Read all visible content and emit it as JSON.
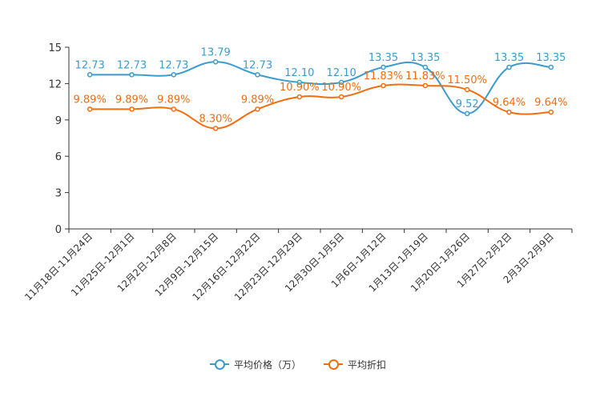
{
  "chart_data": {
    "type": "line",
    "title": "",
    "xlabel": "",
    "ylabel": "",
    "ylim": [
      0,
      15
    ],
    "yticks": [
      0,
      3,
      6,
      9,
      12,
      15
    ],
    "grid": false,
    "legend_position": "bottom-center",
    "categories": [
      "11月18日-11月24日",
      "11月25日-12月1日",
      "12月2日-12月8日",
      "12月9日-12月15日",
      "12月16日-12月22日",
      "12月23日-12月29日",
      "12月30日-1月5日",
      "1月6日-1月12日",
      "1月13日-1月19日",
      "1月20日-1月26日",
      "1月27日-2月2日",
      "2月3日-2月9日"
    ],
    "series": [
      {
        "name": "平均价格（万）",
        "color": "#3a9bcf",
        "values": [
          12.73,
          12.73,
          12.73,
          13.79,
          12.73,
          12.1,
          12.1,
          13.35,
          13.35,
          9.52,
          13.35,
          13.35
        ],
        "labels": [
          "12.73",
          "12.73",
          "12.73",
          "13.79",
          "12.73",
          "12.10",
          "12.10",
          "13.35",
          "13.35",
          "9.52",
          "13.35",
          "13.35"
        ]
      },
      {
        "name": "平均折扣",
        "color": "#f26d0f",
        "values": [
          9.89,
          9.89,
          9.89,
          8.3,
          9.89,
          10.9,
          10.9,
          11.83,
          11.83,
          11.5,
          9.64,
          9.64
        ],
        "labels": [
          "9.89%",
          "9.89%",
          "9.89%",
          "8.30%",
          "9.89%",
          "10.90%",
          "10.90%",
          "11.83%",
          "11.83%",
          "11.50%",
          "9.64%",
          "9.64%"
        ]
      }
    ]
  }
}
